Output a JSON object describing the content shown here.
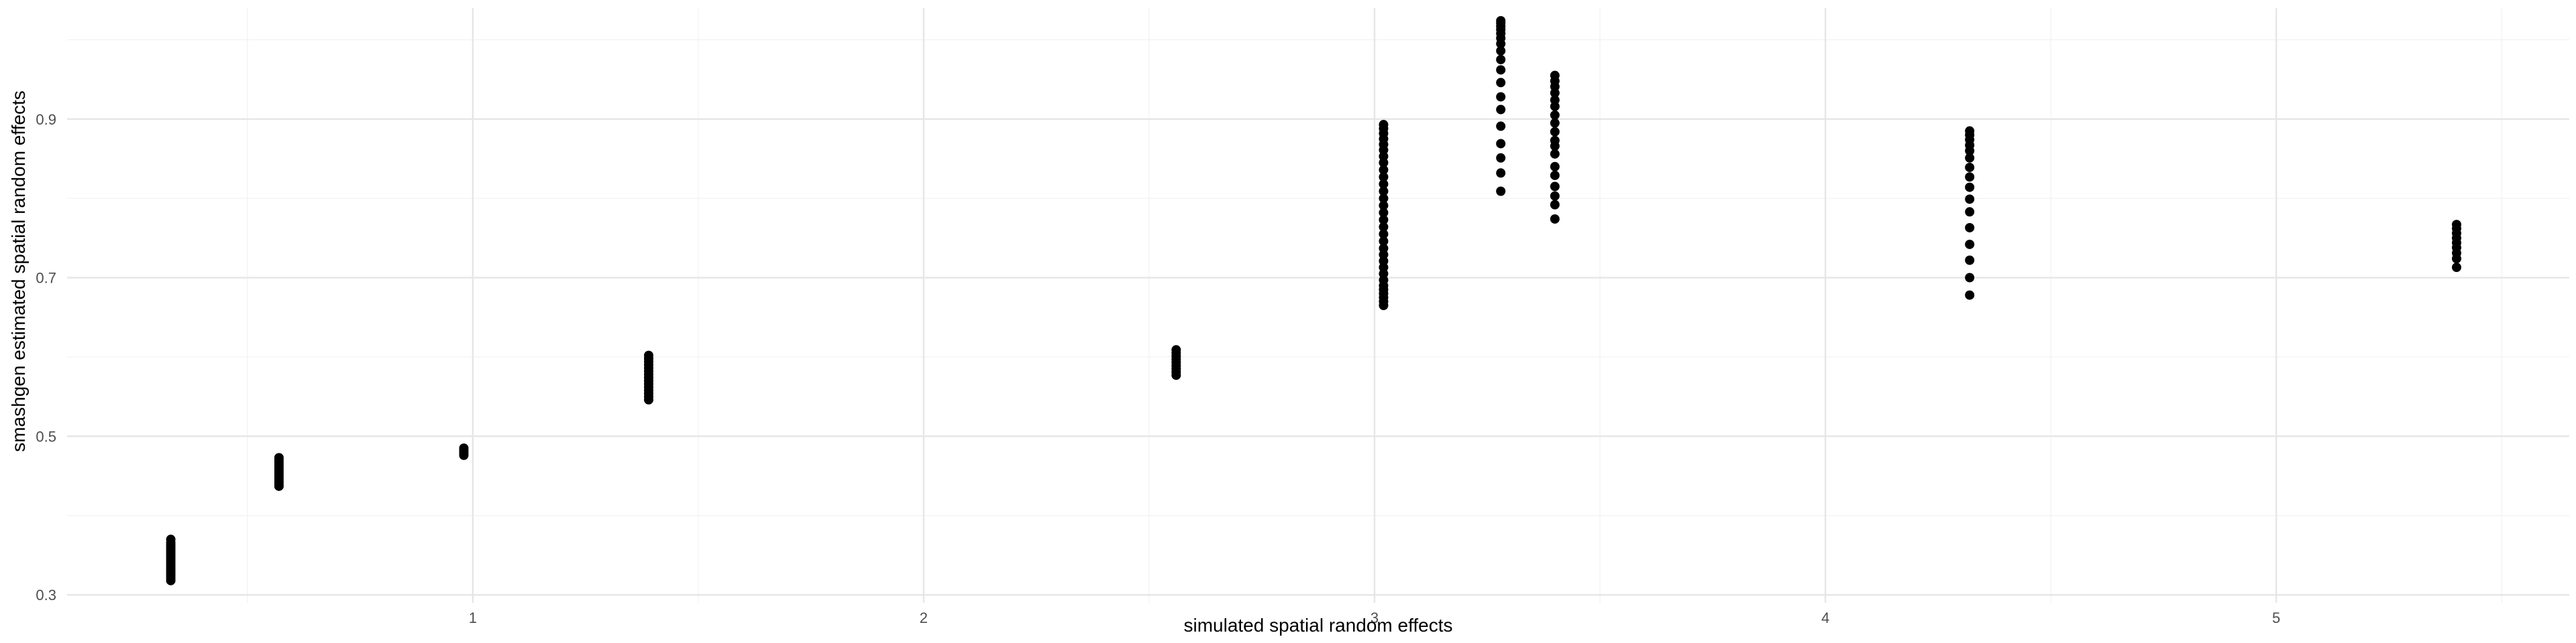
{
  "chart_data": {
    "type": "scatter",
    "xlabel": "simulated spatial random effects",
    "ylabel": "smashgen estimated spatial random effects",
    "xlim": [
      0.1,
      5.65
    ],
    "ylim": [
      0.29,
      1.04
    ],
    "x_ticks": [
      1,
      2,
      3,
      4,
      5
    ],
    "x_tick_labels": [
      "1",
      "2",
      "3",
      "4",
      "5"
    ],
    "y_ticks": [
      0.3,
      0.5,
      0.7,
      0.9
    ],
    "y_tick_labels": [
      "0.3",
      "0.5",
      "0.7",
      "0.9"
    ],
    "x_minor_ticks": [
      0.5,
      1.5,
      2.5,
      3.5,
      4.5,
      5.5
    ],
    "y_minor_ticks": [
      0.4,
      0.6,
      0.8,
      1.0
    ],
    "grid": true,
    "point_color": "#000000",
    "grid_color": "#e6e6e6",
    "series": [
      {
        "points": [
          [
            0.33,
            0.318
          ],
          [
            0.33,
            0.321
          ],
          [
            0.33,
            0.324
          ],
          [
            0.33,
            0.327
          ],
          [
            0.33,
            0.33
          ],
          [
            0.33,
            0.333
          ],
          [
            0.33,
            0.336
          ],
          [
            0.33,
            0.339
          ],
          [
            0.33,
            0.342
          ],
          [
            0.33,
            0.345
          ],
          [
            0.33,
            0.348
          ],
          [
            0.33,
            0.351
          ],
          [
            0.33,
            0.354
          ],
          [
            0.33,
            0.357
          ],
          [
            0.33,
            0.36
          ],
          [
            0.33,
            0.363
          ],
          [
            0.33,
            0.366
          ],
          [
            0.33,
            0.37
          ],
          [
            0.57,
            0.437
          ],
          [
            0.57,
            0.44
          ],
          [
            0.57,
            0.443
          ],
          [
            0.57,
            0.446
          ],
          [
            0.57,
            0.449
          ],
          [
            0.57,
            0.452
          ],
          [
            0.57,
            0.455
          ],
          [
            0.57,
            0.458
          ],
          [
            0.57,
            0.461
          ],
          [
            0.57,
            0.464
          ],
          [
            0.57,
            0.467
          ],
          [
            0.57,
            0.47
          ],
          [
            0.57,
            0.473
          ],
          [
            0.98,
            0.476
          ],
          [
            0.98,
            0.479
          ],
          [
            0.98,
            0.482
          ],
          [
            0.98,
            0.485
          ],
          [
            1.39,
            0.546
          ],
          [
            1.39,
            0.55
          ],
          [
            1.39,
            0.554
          ],
          [
            1.39,
            0.558
          ],
          [
            1.39,
            0.562
          ],
          [
            1.39,
            0.566
          ],
          [
            1.39,
            0.57
          ],
          [
            1.39,
            0.574
          ],
          [
            1.39,
            0.578
          ],
          [
            1.39,
            0.582
          ],
          [
            1.39,
            0.586
          ],
          [
            1.39,
            0.59
          ],
          [
            1.39,
            0.594
          ],
          [
            1.39,
            0.598
          ],
          [
            1.39,
            0.602
          ],
          [
            2.56,
            0.577
          ],
          [
            2.56,
            0.581
          ],
          [
            2.56,
            0.585
          ],
          [
            2.56,
            0.589
          ],
          [
            2.56,
            0.593
          ],
          [
            2.56,
            0.597
          ],
          [
            2.56,
            0.601
          ],
          [
            2.56,
            0.605
          ],
          [
            2.56,
            0.609
          ],
          [
            3.02,
            0.665
          ],
          [
            3.02,
            0.67
          ],
          [
            3.02,
            0.675
          ],
          [
            3.02,
            0.68
          ],
          [
            3.02,
            0.685
          ],
          [
            3.02,
            0.69
          ],
          [
            3.02,
            0.697
          ],
          [
            3.02,
            0.705
          ],
          [
            3.02,
            0.713
          ],
          [
            3.02,
            0.721
          ],
          [
            3.02,
            0.729
          ],
          [
            3.02,
            0.737
          ],
          [
            3.02,
            0.746
          ],
          [
            3.02,
            0.755
          ],
          [
            3.02,
            0.764
          ],
          [
            3.02,
            0.773
          ],
          [
            3.02,
            0.782
          ],
          [
            3.02,
            0.791
          ],
          [
            3.02,
            0.8
          ],
          [
            3.02,
            0.809
          ],
          [
            3.02,
            0.818
          ],
          [
            3.02,
            0.827
          ],
          [
            3.02,
            0.836
          ],
          [
            3.02,
            0.845
          ],
          [
            3.02,
            0.853
          ],
          [
            3.02,
            0.861
          ],
          [
            3.02,
            0.868
          ],
          [
            3.02,
            0.875
          ],
          [
            3.02,
            0.882
          ],
          [
            3.02,
            0.888
          ],
          [
            3.02,
            0.893
          ],
          [
            3.28,
            0.809
          ],
          [
            3.28,
            0.832
          ],
          [
            3.28,
            0.851
          ],
          [
            3.28,
            0.869
          ],
          [
            3.28,
            0.891
          ],
          [
            3.28,
            0.912
          ],
          [
            3.28,
            0.928
          ],
          [
            3.28,
            0.946
          ],
          [
            3.28,
            0.962
          ],
          [
            3.28,
            0.975
          ],
          [
            3.28,
            0.986
          ],
          [
            3.28,
            0.995
          ],
          [
            3.28,
            1.002
          ],
          [
            3.28,
            1.008
          ],
          [
            3.28,
            1.013
          ],
          [
            3.28,
            1.017
          ],
          [
            3.28,
            1.021
          ],
          [
            3.28,
            1.024
          ],
          [
            3.4,
            0.774
          ],
          [
            3.4,
            0.792
          ],
          [
            3.4,
            0.803
          ],
          [
            3.4,
            0.815
          ],
          [
            3.4,
            0.829
          ],
          [
            3.4,
            0.84
          ],
          [
            3.4,
            0.856
          ],
          [
            3.4,
            0.866
          ],
          [
            3.4,
            0.873
          ],
          [
            3.4,
            0.884
          ],
          [
            3.4,
            0.895
          ],
          [
            3.4,
            0.905
          ],
          [
            3.4,
            0.916
          ],
          [
            3.4,
            0.924
          ],
          [
            3.4,
            0.933
          ],
          [
            3.4,
            0.941
          ],
          [
            3.4,
            0.948
          ],
          [
            3.4,
            0.955
          ],
          [
            4.32,
            0.678
          ],
          [
            4.32,
            0.7
          ],
          [
            4.32,
            0.722
          ],
          [
            4.32,
            0.742
          ],
          [
            4.32,
            0.763
          ],
          [
            4.32,
            0.783
          ],
          [
            4.32,
            0.799
          ],
          [
            4.32,
            0.814
          ],
          [
            4.32,
            0.827
          ],
          [
            4.32,
            0.839
          ],
          [
            4.32,
            0.851
          ],
          [
            4.32,
            0.86
          ],
          [
            4.32,
            0.867
          ],
          [
            4.32,
            0.874
          ],
          [
            4.32,
            0.88
          ],
          [
            4.32,
            0.885
          ],
          [
            5.4,
            0.713
          ],
          [
            5.4,
            0.724
          ],
          [
            5.4,
            0.731
          ],
          [
            5.4,
            0.738
          ],
          [
            5.4,
            0.744
          ],
          [
            5.4,
            0.75
          ],
          [
            5.4,
            0.756
          ],
          [
            5.4,
            0.762
          ],
          [
            5.4,
            0.767
          ]
        ]
      }
    ]
  }
}
